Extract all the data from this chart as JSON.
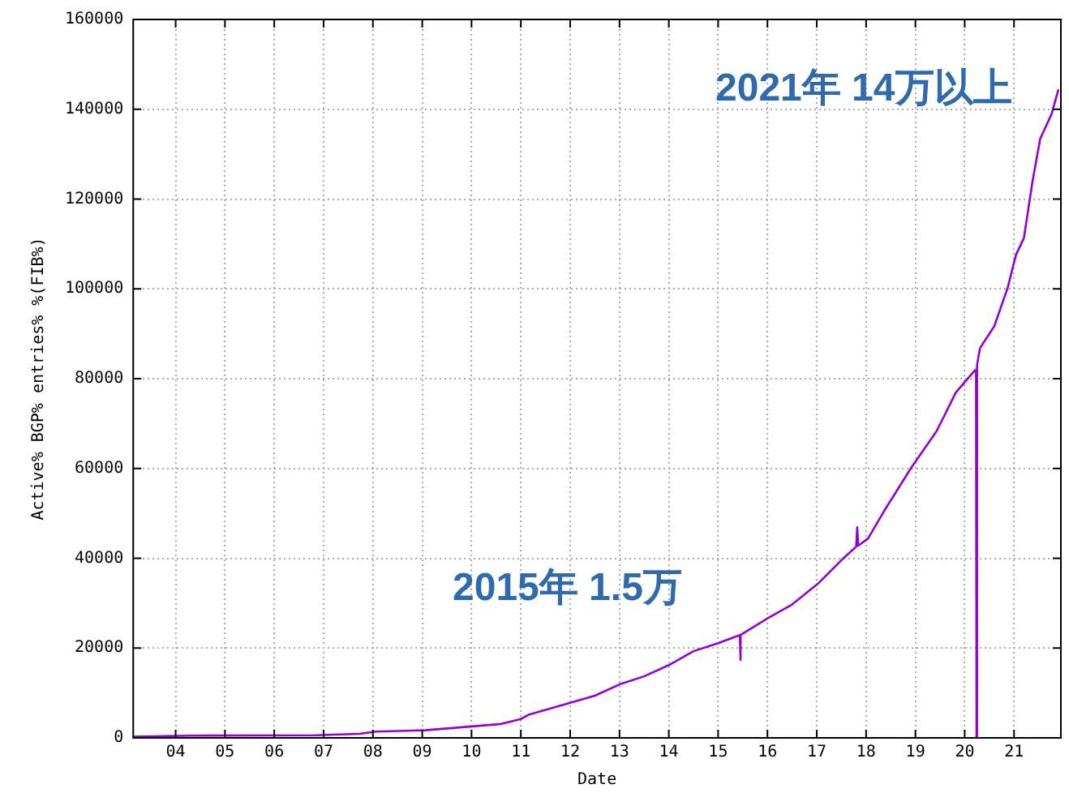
{
  "chart_data": {
    "type": "line",
    "xlabel": "Date",
    "ylabel": "Active% BGP% entries% %(FIB%)",
    "annotations": [
      "2015年 1.5万",
      "2021年 14万以上"
    ],
    "x": [
      2003.14,
      2004.3,
      2006.85,
      2007.73,
      2008.06,
      2009.06,
      2010.06,
      2010.6,
      2011,
      2011.17,
      2012,
      2012.5,
      2013,
      2013.5,
      2014,
      2014.5,
      2015,
      2015.44,
      2015.45,
      2015.46,
      2016,
      2016.5,
      2017.05,
      2017.55,
      2017.8,
      2017.82,
      2017.84,
      2018.04,
      2018.37,
      2018.93,
      2019.43,
      2019.82,
      2020.2,
      2020.23,
      2020.24,
      2020.25,
      2020.31,
      2020.6,
      2020.87,
      2021.04,
      2021.2,
      2021.37,
      2021.53,
      2021.76,
      2021.9
    ],
    "series": [
      {
        "color": "#9400d3",
        "values": [
          250,
          500,
          600,
          900,
          1400,
          1700,
          2600,
          3100,
          4200,
          5200,
          7800,
          9400,
          11900,
          13700,
          16200,
          19300,
          21100,
          22900,
          17400,
          22900,
          26600,
          29700,
          34600,
          40100,
          42600,
          46900,
          42800,
          44400,
          50600,
          60400,
          68300,
          76900,
          81800,
          82000,
          0,
          83000,
          86800,
          91700,
          100200,
          107600,
          111300,
          123600,
          133400,
          138900,
          144400
        ]
      }
    ],
    "xlim": [
      2003.14,
      2021.95
    ],
    "xticks": [
      {
        "value": 2004,
        "label": "04"
      },
      {
        "value": 2005,
        "label": "05"
      },
      {
        "value": 2006,
        "label": "06"
      },
      {
        "value": 2007,
        "label": "07"
      },
      {
        "value": 2008,
        "label": "08"
      },
      {
        "value": 2009,
        "label": "09"
      },
      {
        "value": 2010,
        "label": "10"
      },
      {
        "value": 2011,
        "label": "11"
      },
      {
        "value": 2012,
        "label": "12"
      },
      {
        "value": 2013,
        "label": "13"
      },
      {
        "value": 2014,
        "label": "14"
      },
      {
        "value": 2015,
        "label": "15"
      },
      {
        "value": 2016,
        "label": "16"
      },
      {
        "value": 2017,
        "label": "17"
      },
      {
        "value": 2018,
        "label": "18"
      },
      {
        "value": 2019,
        "label": "19"
      },
      {
        "value": 2020,
        "label": "20"
      },
      {
        "value": 2021,
        "label": "21"
      }
    ],
    "ylim": [
      0,
      160000
    ],
    "yticks": [
      0,
      20000,
      40000,
      60000,
      80000,
      100000,
      120000,
      140000,
      160000
    ],
    "grid": true,
    "legend": false,
    "marker": "none",
    "line_style": "solid"
  }
}
